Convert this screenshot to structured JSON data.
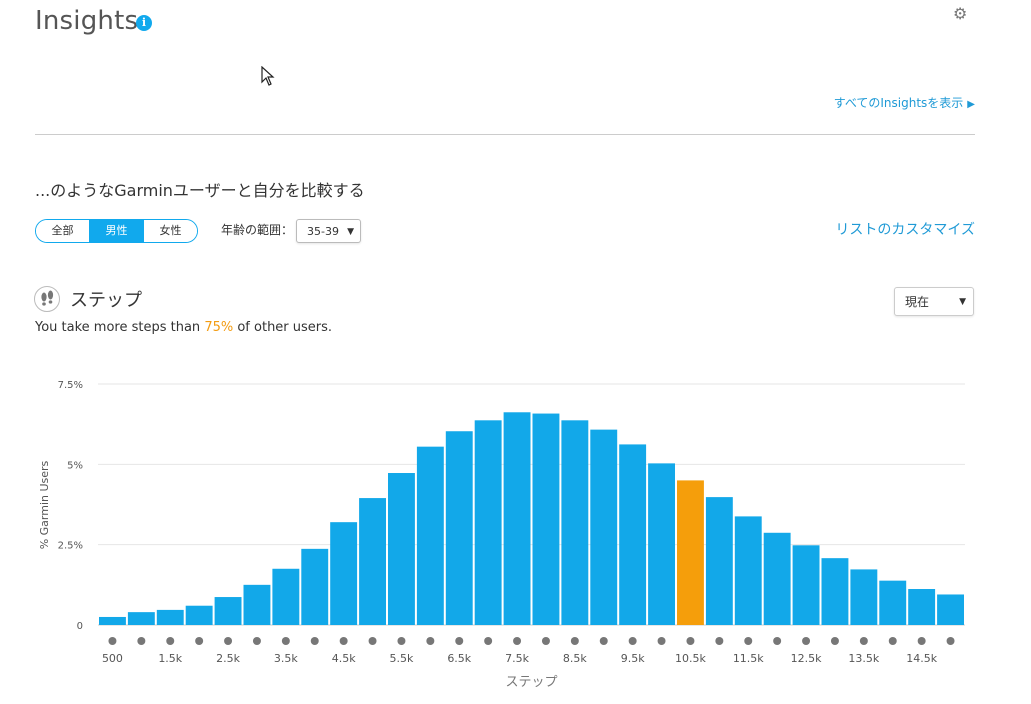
{
  "header": {
    "title": "Insights",
    "info_glyph": "i",
    "see_all_link": "すべてのInsightsを表示"
  },
  "compare": {
    "heading": "...のようなGarminユーザーと自分を比較する",
    "gender_options": [
      "全部",
      "男性",
      "女性"
    ],
    "gender_selected": "男性",
    "age_label": "年齢の範囲：",
    "age_value": "35-39",
    "customize_link": "リストのカスタマイズ"
  },
  "steps_section": {
    "title": "ステップ",
    "period_value": "現在",
    "summary_prefix": "You take more steps than ",
    "summary_percent": "75%",
    "summary_suffix": " of other users."
  },
  "colors": {
    "accent": "#11a9ed",
    "bar": "#12a8e9",
    "highlight_bar": "#f59e0b"
  },
  "chart_data": {
    "type": "bar",
    "xlabel": "ステップ",
    "ylabel": "% Garmin Users",
    "ylim": [
      0,
      7.5
    ],
    "y_ticks": [
      0,
      2.5,
      5,
      7.5
    ],
    "y_tick_labels": [
      "0",
      "2.5%",
      "5%",
      "7.5%"
    ],
    "x_tick_labels": [
      "500",
      "1.5k",
      "2.5k",
      "3.5k",
      "4.5k",
      "5.5k",
      "6.5k",
      "7.5k",
      "8.5k",
      "9.5k",
      "10.5k",
      "11.5k",
      "12.5k",
      "13.5k",
      "14.5k"
    ],
    "categories": [
      "500",
      "1k",
      "1.5k",
      "2k",
      "2.5k",
      "3k",
      "3.5k",
      "4k",
      "4.5k",
      "5k",
      "5.5k",
      "6k",
      "6.5k",
      "7k",
      "7.5k",
      "8k",
      "8.5k",
      "9k",
      "9.5k",
      "10k",
      "10.5k",
      "11k",
      "11.5k",
      "12k",
      "12.5k",
      "13k",
      "13.5k",
      "14k",
      "14.5k",
      "15k"
    ],
    "values": [
      0.25,
      0.4,
      0.47,
      0.6,
      0.87,
      1.25,
      1.75,
      2.37,
      3.2,
      3.95,
      4.73,
      5.55,
      6.03,
      6.37,
      6.62,
      6.58,
      6.37,
      6.08,
      5.62,
      5.03,
      4.5,
      3.98,
      3.38,
      2.87,
      2.48,
      2.08,
      1.73,
      1.38,
      1.12,
      0.95
    ],
    "highlight_category": "10.5k",
    "grid": true,
    "legend": "none"
  }
}
